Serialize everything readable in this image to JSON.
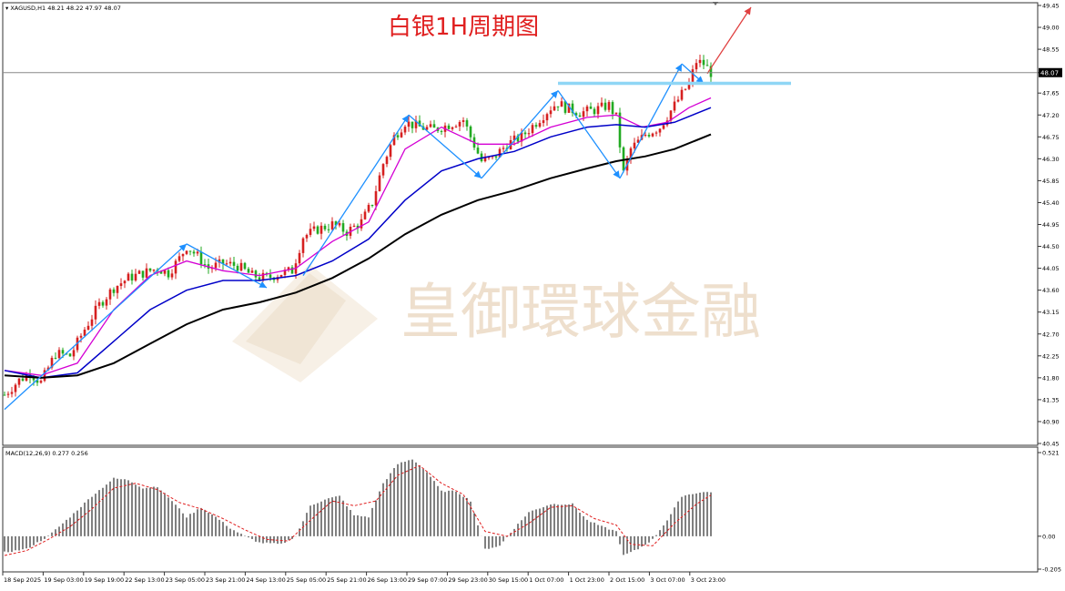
{
  "window": {
    "symbol_header": "XAGUSD,H1  48.21 48.22 47.97 48.07",
    "title": "白银1H周期图",
    "watermark": "皇御環球金融",
    "current_price": "48.07"
  },
  "chart_data": [
    {
      "type": "candlestick",
      "symbol": "XAGUSD",
      "timeframe": "H1",
      "ohlc_last": {
        "open": 48.21,
        "high": 48.22,
        "low": 47.97,
        "close": 48.07
      },
      "ylim": [
        40.45,
        49.45
      ],
      "y_ticks": [
        "49.45",
        "49.00",
        "48.55",
        "48.07",
        "47.65",
        "47.20",
        "46.75",
        "46.30",
        "45.85",
        "45.40",
        "44.95",
        "44.50",
        "44.05",
        "43.60",
        "43.15",
        "42.70",
        "42.25",
        "41.80",
        "41.35",
        "40.90",
        "40.45"
      ],
      "x_ticks": [
        "18 Sep 2025",
        "19 Sep 03:00",
        "19 Sep 19:00",
        "22 Sep 13:00",
        "23 Sep 05:00",
        "23 Sep 21:00",
        "24 Sep 13:00",
        "25 Sep 05:00",
        "25 Sep 21:00",
        "26 Sep 13:00",
        "29 Sep 07:00",
        "29 Sep 23:00",
        "30 Sep 15:00",
        "1 Oct 07:00",
        "1 Oct 23:00",
        "2 Oct 15:00",
        "3 Oct 07:00",
        "3 Oct 23:00"
      ],
      "close_path": [
        [
          0,
          41.45
        ],
        [
          4,
          41.75
        ],
        [
          7,
          41.9
        ],
        [
          10,
          41.7
        ],
        [
          14,
          42.3
        ],
        [
          18,
          42.25
        ],
        [
          22,
          42.8
        ],
        [
          26,
          43.3
        ],
        [
          30,
          43.65
        ],
        [
          34,
          43.85
        ],
        [
          38,
          43.95
        ],
        [
          42,
          44.05
        ],
        [
          45,
          43.95
        ],
        [
          48,
          44.25
        ],
        [
          50,
          44.5
        ],
        [
          53,
          44.3
        ],
        [
          56,
          44.05
        ],
        [
          60,
          44.15
        ],
        [
          64,
          44.1
        ],
        [
          68,
          43.9
        ],
        [
          72,
          43.85
        ],
        [
          76,
          43.95
        ],
        [
          79,
          44.0
        ],
        [
          82,
          44.7
        ],
        [
          86,
          44.85
        ],
        [
          90,
          44.95
        ],
        [
          94,
          44.8
        ],
        [
          98,
          45.0
        ],
        [
          101,
          45.4
        ],
        [
          104,
          46.2
        ],
        [
          107,
          46.75
        ],
        [
          110,
          47.05
        ],
        [
          114,
          46.95
        ],
        [
          118,
          46.9
        ],
        [
          122,
          47.0
        ],
        [
          126,
          47.1
        ],
        [
          128,
          46.75
        ],
        [
          131,
          46.25
        ],
        [
          134,
          46.3
        ],
        [
          138,
          46.6
        ],
        [
          142,
          46.75
        ],
        [
          146,
          47.05
        ],
        [
          150,
          47.35
        ],
        [
          152,
          47.45
        ],
        [
          154,
          47.35
        ],
        [
          158,
          47.25
        ],
        [
          162,
          47.3
        ],
        [
          166,
          47.4
        ],
        [
          168,
          47.15
        ],
        [
          170,
          46.0
        ],
        [
          172,
          46.5
        ],
        [
          176,
          46.8
        ],
        [
          180,
          46.95
        ],
        [
          184,
          47.4
        ],
        [
          188,
          47.85
        ],
        [
          190,
          48.3
        ],
        [
          192,
          48.25
        ],
        [
          194,
          48.07
        ]
      ],
      "ma_fast": [
        [
          0,
          41.95
        ],
        [
          10,
          41.85
        ],
        [
          20,
          42.1
        ],
        [
          30,
          43.2
        ],
        [
          40,
          43.9
        ],
        [
          50,
          44.2
        ],
        [
          60,
          44.0
        ],
        [
          70,
          43.9
        ],
        [
          80,
          44.05
        ],
        [
          90,
          44.6
        ],
        [
          100,
          45.0
        ],
        [
          110,
          46.5
        ],
        [
          120,
          46.95
        ],
        [
          130,
          46.6
        ],
        [
          140,
          46.6
        ],
        [
          150,
          46.95
        ],
        [
          160,
          47.15
        ],
        [
          168,
          47.2
        ],
        [
          175,
          46.95
        ],
        [
          182,
          47.05
        ],
        [
          188,
          47.35
        ],
        [
          194,
          47.55
        ]
      ],
      "ma_mid": [
        [
          0,
          41.95
        ],
        [
          10,
          41.8
        ],
        [
          20,
          41.9
        ],
        [
          30,
          42.55
        ],
        [
          40,
          43.2
        ],
        [
          50,
          43.6
        ],
        [
          60,
          43.8
        ],
        [
          70,
          43.8
        ],
        [
          80,
          43.9
        ],
        [
          90,
          44.2
        ],
        [
          100,
          44.65
        ],
        [
          110,
          45.45
        ],
        [
          120,
          46.05
        ],
        [
          130,
          46.3
        ],
        [
          140,
          46.45
        ],
        [
          150,
          46.75
        ],
        [
          160,
          46.95
        ],
        [
          168,
          47.0
        ],
        [
          176,
          46.95
        ],
        [
          184,
          47.05
        ],
        [
          194,
          47.35
        ]
      ],
      "ma_slow": [
        [
          0,
          41.85
        ],
        [
          10,
          41.8
        ],
        [
          20,
          41.85
        ],
        [
          30,
          42.1
        ],
        [
          40,
          42.5
        ],
        [
          50,
          42.9
        ],
        [
          60,
          43.2
        ],
        [
          70,
          43.35
        ],
        [
          80,
          43.55
        ],
        [
          90,
          43.85
        ],
        [
          100,
          44.25
        ],
        [
          110,
          44.75
        ],
        [
          120,
          45.15
        ],
        [
          130,
          45.45
        ],
        [
          140,
          45.65
        ],
        [
          150,
          45.9
        ],
        [
          160,
          46.1
        ],
        [
          168,
          46.25
        ],
        [
          176,
          46.35
        ],
        [
          184,
          46.5
        ],
        [
          194,
          46.8
        ]
      ],
      "ma_colors": {
        "fast": "#d400d4",
        "mid": "#0000c8",
        "slow": "#000000"
      },
      "candle_colors": {
        "up": "#d62020",
        "down": "#22aa22"
      },
      "trend_arrows": [
        {
          "from": [
            0,
            41.15
          ],
          "to": [
            50,
            44.55
          ],
          "color": "#1e90ff"
        },
        {
          "from": [
            50,
            44.55
          ],
          "to": [
            72,
            43.65
          ],
          "color": "#1e90ff"
        },
        {
          "from": [
            82,
            43.9
          ],
          "to": [
            111,
            47.2
          ],
          "color": "#1e90ff"
        },
        {
          "from": [
            111,
            47.2
          ],
          "to": [
            131,
            45.9
          ],
          "color": "#1e90ff"
        },
        {
          "from": [
            131,
            45.9
          ],
          "to": [
            152,
            47.7
          ],
          "color": "#1e90ff"
        },
        {
          "from": [
            152,
            47.7
          ],
          "to": [
            169,
            45.9
          ],
          "color": "#1e90ff"
        },
        {
          "from": [
            169,
            45.9
          ],
          "to": [
            186,
            48.25
          ],
          "color": "#1e90ff"
        },
        {
          "from": [
            186,
            48.25
          ],
          "to": [
            192,
            47.85
          ],
          "color": "#1e90ff"
        },
        {
          "from": [
            193,
            48.05
          ],
          "to": [
            205,
            49.45
          ],
          "color": "#e04040"
        }
      ],
      "resistance": {
        "price": 47.85,
        "from": 152,
        "to": 216,
        "color": "#8fd6f5"
      }
    },
    {
      "type": "macd",
      "label": "MACD(12,26,9) 0.277 0.256",
      "ylim": [
        -0.205,
        0.521
      ],
      "y_ticks": [
        "0.521",
        "0.00",
        "-0.205"
      ],
      "histogram": [
        [
          0,
          -0.1
        ],
        [
          6,
          -0.08
        ],
        [
          12,
          0.0
        ],
        [
          18,
          0.12
        ],
        [
          24,
          0.25
        ],
        [
          30,
          0.36
        ],
        [
          34,
          0.35
        ],
        [
          38,
          0.3
        ],
        [
          42,
          0.31
        ],
        [
          46,
          0.22
        ],
        [
          50,
          0.12
        ],
        [
          54,
          0.18
        ],
        [
          58,
          0.12
        ],
        [
          62,
          0.05
        ],
        [
          66,
          0.0
        ],
        [
          70,
          -0.04
        ],
        [
          76,
          -0.05
        ],
        [
          80,
          0.0
        ],
        [
          84,
          0.19
        ],
        [
          88,
          0.23
        ],
        [
          92,
          0.25
        ],
        [
          96,
          0.13
        ],
        [
          100,
          0.12
        ],
        [
          104,
          0.33
        ],
        [
          108,
          0.45
        ],
        [
          112,
          0.48
        ],
        [
          116,
          0.4
        ],
        [
          120,
          0.28
        ],
        [
          124,
          0.28
        ],
        [
          128,
          0.22
        ],
        [
          132,
          -0.08
        ],
        [
          136,
          -0.06
        ],
        [
          140,
          0.05
        ],
        [
          144,
          0.15
        ],
        [
          150,
          0.2
        ],
        [
          156,
          0.2
        ],
        [
          160,
          0.1
        ],
        [
          164,
          0.06
        ],
        [
          168,
          0.03
        ],
        [
          170,
          -0.12
        ],
        [
          174,
          -0.08
        ],
        [
          178,
          -0.02
        ],
        [
          182,
          0.1
        ],
        [
          186,
          0.25
        ],
        [
          190,
          0.27
        ],
        [
          194,
          0.277
        ]
      ],
      "signal": [
        [
          0,
          -0.12
        ],
        [
          6,
          -0.09
        ],
        [
          12,
          -0.02
        ],
        [
          18,
          0.06
        ],
        [
          24,
          0.17
        ],
        [
          30,
          0.3
        ],
        [
          36,
          0.33
        ],
        [
          42,
          0.29
        ],
        [
          48,
          0.21
        ],
        [
          54,
          0.17
        ],
        [
          60,
          0.11
        ],
        [
          66,
          0.04
        ],
        [
          72,
          -0.02
        ],
        [
          78,
          -0.03
        ],
        [
          84,
          0.1
        ],
        [
          90,
          0.22
        ],
        [
          96,
          0.19
        ],
        [
          102,
          0.22
        ],
        [
          108,
          0.38
        ],
        [
          114,
          0.44
        ],
        [
          120,
          0.33
        ],
        [
          126,
          0.26
        ],
        [
          132,
          0.03
        ],
        [
          138,
          0.0
        ],
        [
          144,
          0.08
        ],
        [
          150,
          0.18
        ],
        [
          156,
          0.19
        ],
        [
          162,
          0.11
        ],
        [
          168,
          0.07
        ],
        [
          172,
          -0.05
        ],
        [
          178,
          -0.06
        ],
        [
          184,
          0.08
        ],
        [
          190,
          0.2
        ],
        [
          194,
          0.256
        ]
      ],
      "histogram_color": "#000000",
      "signal_color": "#e02020"
    }
  ]
}
